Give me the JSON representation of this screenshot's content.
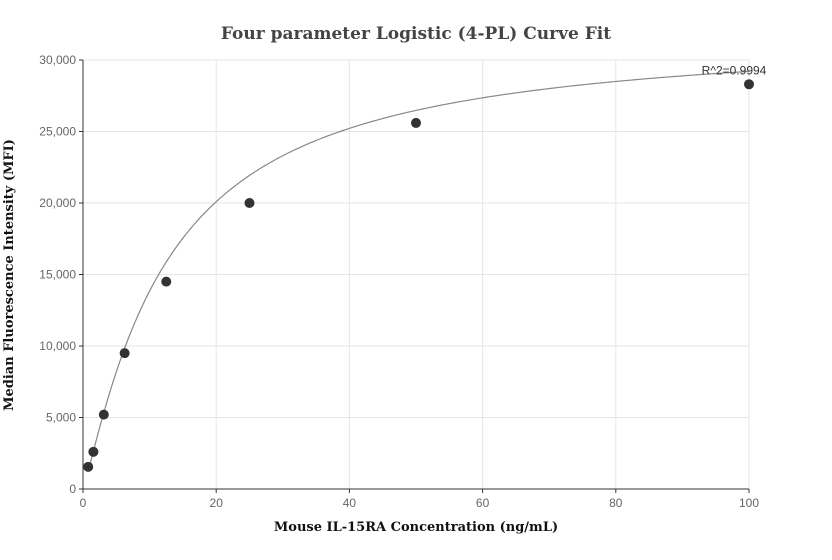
{
  "chart_data": {
    "type": "scatter",
    "title": "Four parameter Logistic (4-PL) Curve Fit",
    "xlabel": "Mouse IL-15RA Concentration (ng/mL)",
    "ylabel": "Median Fluorescence Intensity (MFI)",
    "xlim": [
      0,
      100
    ],
    "ylim": [
      0,
      30000
    ],
    "x_ticks": [
      0,
      20,
      40,
      60,
      80,
      100
    ],
    "y_ticks": [
      0,
      5000,
      10000,
      15000,
      20000,
      25000,
      30000
    ],
    "x_tick_labels": [
      "0",
      "20",
      "40",
      "60",
      "80",
      "100"
    ],
    "y_tick_labels": [
      "0",
      "5,000",
      "10,000",
      "15,000",
      "20,000",
      "25,000",
      "30,000"
    ],
    "grid": true,
    "series": [
      {
        "points": [
          {
            "x": 0.78,
            "y": 1550
          },
          {
            "x": 1.56,
            "y": 2600
          },
          {
            "x": 3.125,
            "y": 5200
          },
          {
            "x": 6.25,
            "y": 9500
          },
          {
            "x": 12.5,
            "y": 14500
          },
          {
            "x": 25,
            "y": 20000
          },
          {
            "x": 50,
            "y": 25600
          },
          {
            "x": 100,
            "y": 28300
          }
        ]
      }
    ],
    "fit": {
      "model": "4PL",
      "params": {
        "A": 0,
        "B": 1.15,
        "C": 12.6,
        "D": 31900
      }
    },
    "annotation": {
      "text": "R^2=0.9994",
      "x": 100,
      "y": 28300
    },
    "colors": {
      "point": "#333333",
      "curve": "#888888",
      "grid": "#e6e6e6"
    }
  }
}
